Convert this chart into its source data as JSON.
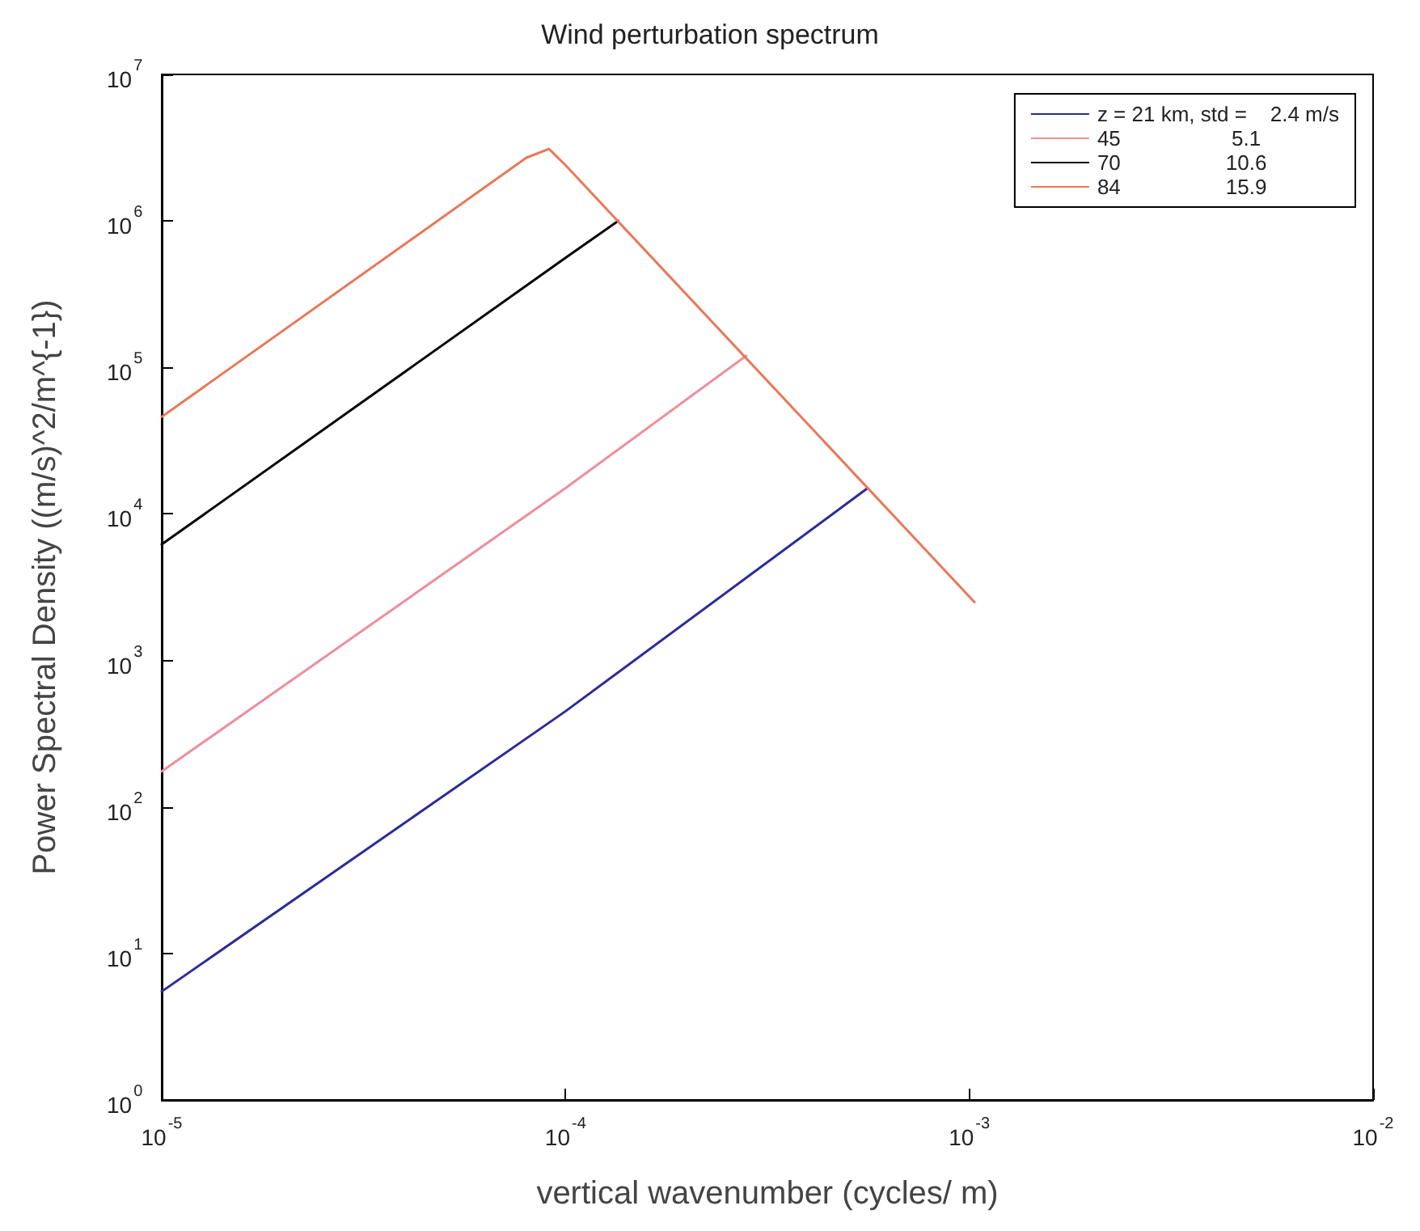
{
  "chart_data": {
    "type": "line",
    "title": "Wind perturbation spectrum",
    "xlabel": "vertical wavenumber (cycles/ m)",
    "ylabel": "Power Spectral Density ((m/s)^2/m^{-1})",
    "log": "xy",
    "xlim": [
      1e-05,
      0.01
    ],
    "ylim": [
      1,
      10000000
    ],
    "xticks": [
      {
        "value": 1e-05,
        "label": "10$^{-5}$"
      },
      {
        "value": 0.0001,
        "label": "10$^{-4}$"
      },
      {
        "value": 0.001,
        "label": "10$^{-3}$"
      },
      {
        "value": 0.01,
        "label": "10$^{-2}$"
      }
    ],
    "yticks": [
      {
        "value": 1,
        "label": "10$^{0}$"
      },
      {
        "value": 10,
        "label": "10$^{1}$"
      },
      {
        "value": 100,
        "label": "10$^{2}$"
      },
      {
        "value": 1000,
        "label": "10$^{3}$"
      },
      {
        "value": 10000,
        "label": "10$^{4}$"
      },
      {
        "value": 100000,
        "label": "10$^{5}$"
      },
      {
        "value": 1000000,
        "label": "10$^{6}$"
      },
      {
        "value": 10000000,
        "label": "10$^{7}$"
      }
    ],
    "grid": false,
    "legend": "top right",
    "marker": "none",
    "line_style": "solid",
    "series": [
      {
        "name": "z = 21 km, std =    2.4 m/s",
        "color": "#2b2b9a",
        "x": [
          1e-05,
          0.0001,
          0.00056
        ],
        "values": [
          5.5,
          450,
          15000
        ]
      },
      {
        "name": "45                   5.1",
        "color": "#ec8f9c",
        "x": [
          1e-05,
          0.0001,
          0.00028
        ],
        "values": [
          175,
          15000,
          120000
        ]
      },
      {
        "name": "70                  10.6",
        "color": "#000000",
        "x": [
          1e-05,
          0.0001,
          0.000135
        ],
        "values": [
          6200,
          560000,
          1000000
        ]
      },
      {
        "name": "84                  15.9",
        "color": "#e8785a",
        "x": [
          1e-05,
          8e-05,
          9.1e-05,
          0.0001,
          0.00103
        ],
        "values": [
          46000,
          2700000,
          3100000,
          2400000,
          2500
        ]
      }
    ]
  }
}
